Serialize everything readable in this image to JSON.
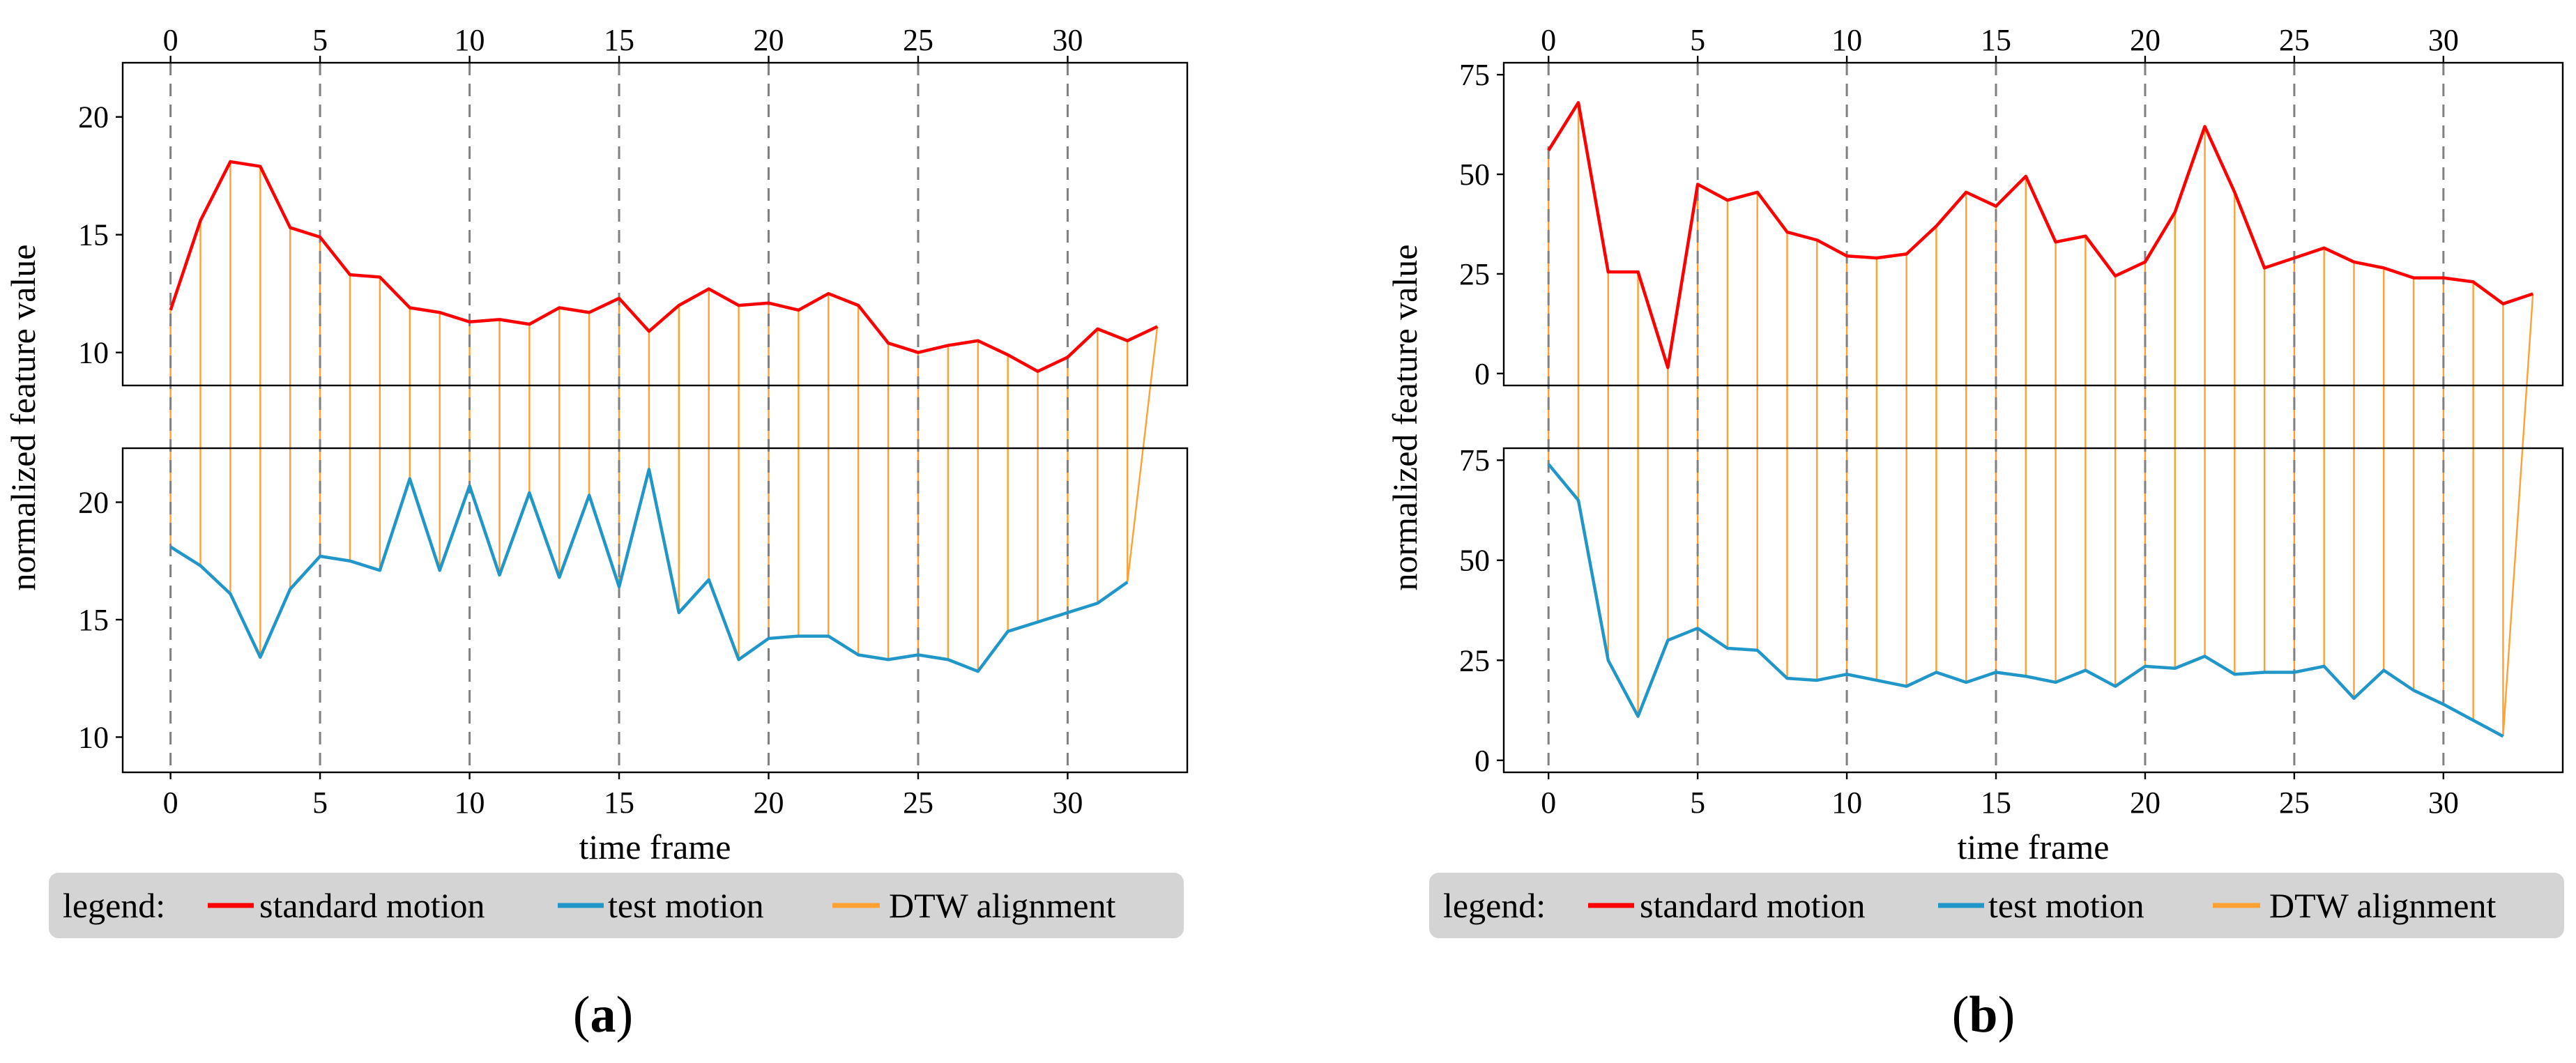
{
  "chart_data": [
    {
      "panel": "a",
      "type": "line",
      "panel_label": "a",
      "xlabel": "time frame",
      "ylabel": "normalized feature value",
      "xlim": [
        -1.6,
        34
      ],
      "xticks": [
        0,
        5,
        10,
        15,
        20,
        25,
        30
      ],
      "grid": "dashed vertical lines at x ticks",
      "legend": {
        "title": "legend:",
        "entries": [
          "standard motion",
          "test motion",
          "DTW alignment"
        ],
        "placement": "bottom"
      },
      "colors": {
        "standard": "#ff0000",
        "test": "#2196c8",
        "alignment": "#ffa033"
      },
      "top": {
        "name": "standard motion",
        "ylim": [
          8.6,
          22.3
        ],
        "yticks": [
          10,
          15,
          20
        ],
        "x": [
          0,
          1,
          2,
          3,
          4,
          5,
          6,
          7,
          8,
          9,
          10,
          11,
          12,
          13,
          14,
          15,
          16,
          17,
          18,
          19,
          20,
          21,
          22,
          23,
          24,
          25,
          26,
          27,
          28,
          29,
          30,
          31,
          32,
          33
        ],
        "values": [
          11.8,
          15.6,
          18.1,
          17.9,
          15.3,
          14.9,
          13.3,
          13.2,
          11.9,
          11.7,
          11.3,
          11.4,
          11.2,
          11.9,
          11.7,
          12.3,
          10.9,
          12.0,
          12.7,
          12.0,
          12.1,
          11.8,
          12.5,
          12.0,
          10.4,
          10.0,
          10.3,
          10.5,
          9.9,
          9.2,
          9.8,
          11.0,
          10.5,
          11.1
        ]
      },
      "bottom": {
        "name": "test motion",
        "ylim": [
          8.5,
          22.3
        ],
        "yticks": [
          10,
          15,
          20
        ],
        "x": [
          0,
          1,
          2,
          3,
          4,
          5,
          6,
          7,
          8,
          9,
          10,
          11,
          12,
          13,
          14,
          15,
          16,
          17,
          18,
          19,
          20,
          21,
          22,
          23,
          24,
          25,
          26,
          27,
          28,
          29,
          30,
          31,
          32
        ],
        "values": [
          18.1,
          17.3,
          16.1,
          13.4,
          16.3,
          17.7,
          17.5,
          17.1,
          21.0,
          17.1,
          20.7,
          16.9,
          20.4,
          16.8,
          20.3,
          16.4,
          21.4,
          15.3,
          16.7,
          13.3,
          14.2,
          14.3,
          14.3,
          13.5,
          13.3,
          13.5,
          13.3,
          12.8,
          14.5,
          14.9,
          15.3,
          15.7,
          16.6
        ]
      },
      "alignment": [
        [
          0,
          0
        ],
        [
          1,
          1
        ],
        [
          2,
          2
        ],
        [
          3,
          3
        ],
        [
          4,
          4
        ],
        [
          5,
          5
        ],
        [
          6,
          6
        ],
        [
          7,
          7
        ],
        [
          8,
          8
        ],
        [
          9,
          9
        ],
        [
          10,
          10
        ],
        [
          11,
          11
        ],
        [
          12,
          12
        ],
        [
          13,
          13
        ],
        [
          14,
          14
        ],
        [
          15,
          15
        ],
        [
          16,
          16
        ],
        [
          17,
          17
        ],
        [
          18,
          18
        ],
        [
          19,
          19
        ],
        [
          20,
          20
        ],
        [
          21,
          21
        ],
        [
          22,
          22
        ],
        [
          23,
          23
        ],
        [
          24,
          24
        ],
        [
          25,
          25
        ],
        [
          26,
          26
        ],
        [
          27,
          27
        ],
        [
          28,
          28
        ],
        [
          29,
          29
        ],
        [
          30,
          30
        ],
        [
          31,
          31
        ],
        [
          32,
          32
        ],
        [
          33,
          32
        ]
      ]
    },
    {
      "panel": "b",
      "type": "line",
      "panel_label": "b",
      "xlabel": "time frame",
      "ylabel": "normalized feature value",
      "xlim": [
        -1.5,
        34
      ],
      "xticks": [
        0,
        5,
        10,
        15,
        20,
        25,
        30
      ],
      "grid": "dashed vertical lines at x ticks",
      "legend": {
        "title": "legend:",
        "entries": [
          "standard motion",
          "test motion",
          "DTW alignment"
        ],
        "placement": "bottom"
      },
      "colors": {
        "standard": "#ff0000",
        "test": "#2196c8",
        "alignment": "#ffa033"
      },
      "top": {
        "name": "standard motion",
        "ylim": [
          -3,
          78
        ],
        "yticks": [
          0,
          25,
          50,
          75
        ],
        "x": [
          0,
          1,
          2,
          3,
          4,
          5,
          6,
          7,
          8,
          9,
          10,
          11,
          12,
          13,
          14,
          15,
          16,
          17,
          18,
          19,
          20,
          21,
          22,
          23,
          24,
          25,
          26,
          27,
          28,
          29,
          30,
          31,
          32,
          33
        ],
        "values": [
          56,
          68,
          25.5,
          25.5,
          1.5,
          47.5,
          43.5,
          45.5,
          35.5,
          33.5,
          29.5,
          29,
          30,
          37,
          45.5,
          42,
          49.5,
          33,
          34.5,
          24.5,
          28,
          40.5,
          62,
          45.5,
          26.5,
          29,
          31.5,
          28,
          26.5,
          24,
          24,
          23,
          17.5,
          20
        ]
      },
      "bottom": {
        "name": "test motion",
        "ylim": [
          -3,
          78
        ],
        "yticks": [
          0,
          25,
          50,
          75
        ],
        "x": [
          0,
          1,
          2,
          3,
          4,
          5,
          6,
          7,
          8,
          9,
          10,
          11,
          12,
          13,
          14,
          15,
          16,
          17,
          18,
          19,
          20,
          21,
          22,
          23,
          24,
          25,
          26,
          27,
          28,
          29,
          30,
          31,
          32
        ],
        "values": [
          74,
          65,
          25,
          11,
          30,
          33,
          28,
          27.5,
          20.5,
          20,
          21.5,
          20,
          18.5,
          22,
          19.5,
          22,
          21,
          19.5,
          22.5,
          18.5,
          23.5,
          23,
          26,
          21.5,
          22,
          22,
          23.5,
          15.5,
          22.5,
          17.5,
          14,
          10,
          6
        ]
      },
      "alignment": [
        [
          0,
          0
        ],
        [
          1,
          1
        ],
        [
          2,
          2
        ],
        [
          3,
          3
        ],
        [
          4,
          4
        ],
        [
          5,
          5
        ],
        [
          6,
          6
        ],
        [
          7,
          7
        ],
        [
          8,
          8
        ],
        [
          9,
          9
        ],
        [
          10,
          10
        ],
        [
          11,
          11
        ],
        [
          12,
          12
        ],
        [
          13,
          13
        ],
        [
          14,
          14
        ],
        [
          15,
          15
        ],
        [
          16,
          16
        ],
        [
          17,
          17
        ],
        [
          18,
          18
        ],
        [
          19,
          19
        ],
        [
          20,
          20
        ],
        [
          21,
          21
        ],
        [
          22,
          22
        ],
        [
          23,
          23
        ],
        [
          24,
          24
        ],
        [
          25,
          25
        ],
        [
          26,
          26
        ],
        [
          27,
          27
        ],
        [
          28,
          28
        ],
        [
          29,
          29
        ],
        [
          30,
          30
        ],
        [
          31,
          31
        ],
        [
          32,
          32
        ],
        [
          33,
          32
        ]
      ]
    }
  ]
}
